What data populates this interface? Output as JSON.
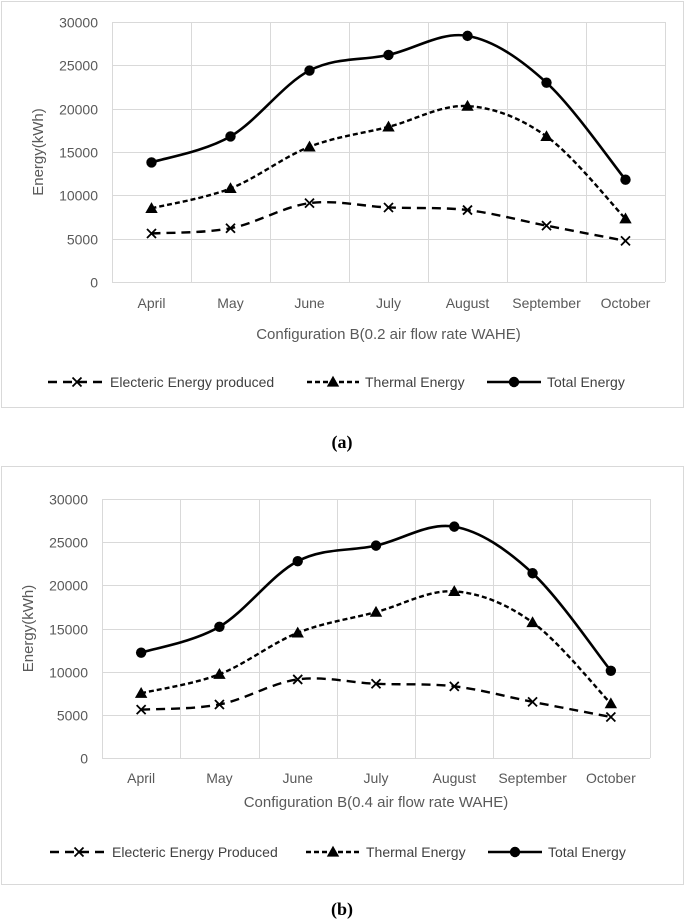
{
  "chart_data": [
    {
      "type": "line",
      "caption": "(a)",
      "title": "",
      "xlabel": "Configuration B(0.2 air flow rate WAHE)",
      "ylabel": "Energy(kWh)",
      "categories": [
        "April",
        "May",
        "June",
        "July",
        "August",
        "September",
        "October"
      ],
      "ylim": [
        0,
        30000
      ],
      "yticks": [
        0,
        5000,
        10000,
        15000,
        20000,
        25000,
        30000
      ],
      "yticklabels": [
        "0",
        "5000",
        "10000",
        "15000",
        "20000",
        "25000",
        "30000"
      ],
      "grid": true,
      "legend_position": "bottom",
      "series": [
        {
          "name": "Electeric Energy produced",
          "marker": "x",
          "dash": "long-dash",
          "values": [
            5600,
            6200,
            9100,
            8600,
            8300,
            6500,
            4750
          ]
        },
        {
          "name": "Thermal Energy",
          "marker": "triangle",
          "dash": "short-dash",
          "values": [
            8500,
            10800,
            15600,
            17900,
            20300,
            16800,
            7300
          ]
        },
        {
          "name": "Total Energy",
          "marker": "circle",
          "dash": "solid",
          "values": [
            13800,
            16800,
            24400,
            26200,
            28400,
            23000,
            11800
          ]
        }
      ]
    },
    {
      "type": "line",
      "caption": "(b)",
      "title": "",
      "xlabel": "Configuration B(0.4 air flow rate WAHE)",
      "ylabel": "Energy(kWh)",
      "categories": [
        "April",
        "May",
        "June",
        "July",
        "August",
        "September",
        "October"
      ],
      "ylim": [
        0,
        30000
      ],
      "yticks": [
        0,
        5000,
        10000,
        15000,
        20000,
        25000,
        30000
      ],
      "yticklabels": [
        "0",
        "5000",
        "10000",
        "15000",
        "20000",
        "25000",
        "30000"
      ],
      "grid": true,
      "legend_position": "bottom",
      "series": [
        {
          "name": "Electeric Energy Produced",
          "marker": "x",
          "dash": "long-dash",
          "values": [
            5600,
            6200,
            9100,
            8600,
            8300,
            6500,
            4750
          ]
        },
        {
          "name": "Thermal Energy",
          "marker": "triangle",
          "dash": "short-dash",
          "values": [
            7500,
            9700,
            14500,
            16900,
            19300,
            15700,
            6300
          ]
        },
        {
          "name": "Total Energy",
          "marker": "circle",
          "dash": "solid",
          "values": [
            12200,
            15200,
            22800,
            24600,
            26800,
            21400,
            10100
          ]
        }
      ]
    }
  ]
}
